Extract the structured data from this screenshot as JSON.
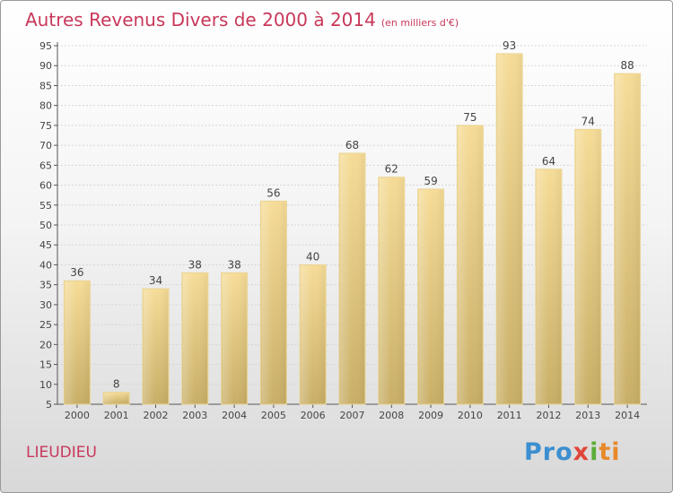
{
  "title": {
    "main": "Autres Revenus Divers de 2000 à 2014",
    "unit": "(en milliers d'€)"
  },
  "commune": "LIEUDIEU",
  "logo": {
    "text": "Proxiti",
    "colors": [
      "#3c8fd0",
      "#e7892b",
      "#e0463a",
      "#5aae3a"
    ]
  },
  "colors": {
    "title": "#c8385a",
    "bar_light": "#f6dc97",
    "bar_dark": "#c8ae66",
    "grid": "#d6d6d6"
  },
  "chart_data": {
    "type": "bar",
    "title": "Autres Revenus Divers de 2000 à 2014",
    "xlabel": "",
    "ylabel": "",
    "categories": [
      "2000",
      "2001",
      "2002",
      "2003",
      "2004",
      "2005",
      "2006",
      "2007",
      "2008",
      "2009",
      "2010",
      "2011",
      "2012",
      "2013",
      "2014"
    ],
    "values": [
      36,
      8,
      34,
      38,
      38,
      56,
      40,
      68,
      62,
      59,
      75,
      93,
      64,
      74,
      88
    ],
    "ylim": [
      5,
      95
    ],
    "yticks": [
      5,
      10,
      15,
      20,
      25,
      30,
      35,
      40,
      45,
      50,
      55,
      60,
      65,
      70,
      75,
      80,
      85,
      90,
      95
    ],
    "grid": true,
    "legend": "none"
  }
}
